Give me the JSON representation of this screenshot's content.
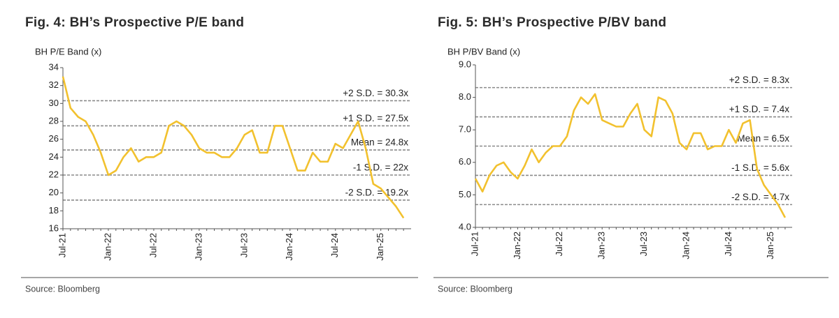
{
  "chart_data": [
    {
      "type": "line",
      "title": "Fig. 4: BH’s Prospective P/E band",
      "y_label": "BH P/E Band (x)",
      "source": "Source: Bloomberg",
      "color": "#f2c12e",
      "categories": [
        "Jul-21",
        null,
        null,
        null,
        null,
        null,
        "Jan-22",
        null,
        null,
        null,
        null,
        null,
        "Jul-22",
        null,
        null,
        null,
        null,
        null,
        "Jan-23",
        null,
        null,
        null,
        null,
        null,
        "Jul-23",
        null,
        null,
        null,
        null,
        null,
        "Jan-24",
        null,
        null,
        null,
        null,
        null,
        "Jul-24",
        null,
        null,
        null,
        null,
        null,
        "Jan-25",
        null,
        null,
        null
      ],
      "values": [
        33,
        29.5,
        28.5,
        28,
        26.5,
        24.5,
        22,
        22.5,
        24,
        25,
        23.5,
        24,
        24,
        24.5,
        27.5,
        28,
        27.5,
        26.5,
        25,
        24.5,
        24.5,
        24,
        24,
        25,
        26.5,
        27,
        24.5,
        24.5,
        27.5,
        27.5,
        25,
        22.5,
        22.5,
        24.5,
        23.5,
        23.5,
        25.5,
        25,
        26.5,
        28,
        25,
        21,
        20.5,
        19.5,
        18.5,
        17.2
      ],
      "ylim": [
        16,
        34
      ],
      "yticks": [
        16,
        18,
        20,
        22,
        24,
        26,
        28,
        30,
        32,
        34
      ],
      "bands": [
        {
          "label": "+2 S.D. = 30.3x",
          "value": 30.3
        },
        {
          "label": "+1 S.D. = 27.5x",
          "value": 27.5
        },
        {
          "label": "Mean = 24.8x",
          "value": 24.8
        },
        {
          "label": "-1 S.D. = 22x",
          "value": 22
        },
        {
          "label": "-2 S.D. = 19.2x",
          "value": 19.2
        }
      ]
    },
    {
      "type": "line",
      "title": "Fig. 5: BH’s Prospective P/BV band",
      "y_label": "BH P/BV Band (x)",
      "source": "Source: Bloomberg",
      "color": "#f2c12e",
      "categories": [
        "Jul-21",
        null,
        null,
        null,
        null,
        null,
        "Jan-22",
        null,
        null,
        null,
        null,
        null,
        "Jul-22",
        null,
        null,
        null,
        null,
        null,
        "Jan-23",
        null,
        null,
        null,
        null,
        null,
        "Jul-23",
        null,
        null,
        null,
        null,
        null,
        "Jan-24",
        null,
        null,
        null,
        null,
        null,
        "Jul-24",
        null,
        null,
        null,
        null,
        null,
        "Jan-25",
        null,
        null
      ],
      "values": [
        5.5,
        5.1,
        5.6,
        5.9,
        6.0,
        5.7,
        5.5,
        5.9,
        6.4,
        6.0,
        6.3,
        6.5,
        6.5,
        6.8,
        7.6,
        8.0,
        7.8,
        8.1,
        7.3,
        7.2,
        7.1,
        7.1,
        7.5,
        7.8,
        7.0,
        6.8,
        8.0,
        7.9,
        7.5,
        6.6,
        6.4,
        6.9,
        6.9,
        6.4,
        6.5,
        6.5,
        7.0,
        6.6,
        7.2,
        7.3,
        5.8,
        5.3,
        5.0,
        4.7,
        4.3
      ],
      "ylim": [
        4,
        9
      ],
      "yticks": [
        {
          "value": 4,
          "label": "4.0"
        },
        {
          "value": 5,
          "label": "5.0"
        },
        {
          "value": 6,
          "label": "6.0"
        },
        {
          "value": 7,
          "label": "7.0"
        },
        {
          "value": 8,
          "label": "8.0"
        },
        {
          "value": 9,
          "label": "9.0"
        }
      ],
      "bands": [
        {
          "label": "+2 S.D. = 8.3x",
          "value": 8.3
        },
        {
          "label": "+1 S.D. = 7.4x",
          "value": 7.4
        },
        {
          "label": "Mean = 6.5x",
          "value": 6.5
        },
        {
          "label": "-1 S.D. = 5.6x",
          "value": 5.6
        },
        {
          "label": "-2 S.D. = 4.7x",
          "value": 4.7
        }
      ]
    }
  ]
}
